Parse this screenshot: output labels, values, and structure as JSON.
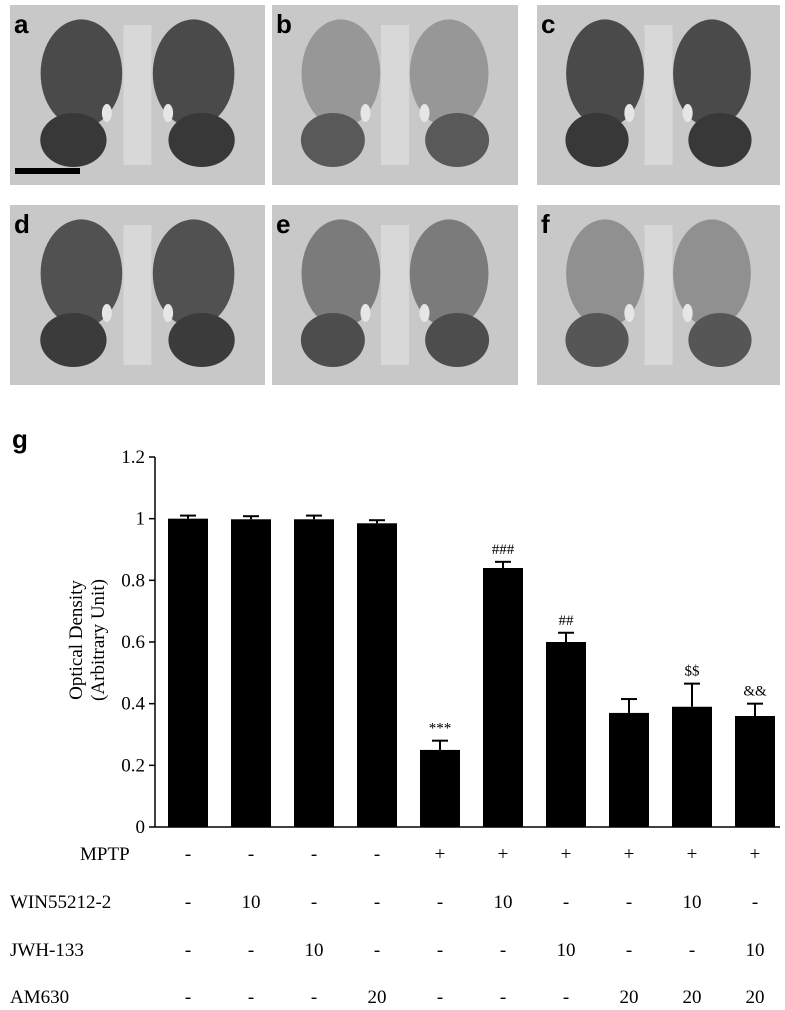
{
  "panels": [
    "a",
    "b",
    "c",
    "d",
    "e",
    "f"
  ],
  "chart_data": {
    "type": "bar",
    "label": "g",
    "ylabel": [
      "Optical Density",
      "(Arbitrary Unit)"
    ],
    "categories": [
      null,
      null,
      null,
      null,
      null,
      null,
      null,
      null,
      null,
      null
    ],
    "values": [
      1.0,
      0.998,
      0.998,
      0.985,
      0.25,
      0.84,
      0.6,
      0.37,
      0.39,
      0.36
    ],
    "errors": [
      0.01,
      0.01,
      0.012,
      0.01,
      0.03,
      0.02,
      0.03,
      0.045,
      0.075,
      0.04
    ],
    "annotations": [
      null,
      null,
      null,
      null,
      "***",
      "###",
      "##",
      null,
      "$$",
      "&&"
    ],
    "color": "#000000",
    "ylim": [
      0,
      1.2
    ],
    "yticks": [
      0,
      0.2,
      0.4,
      0.6,
      0.8,
      1,
      1.2
    ],
    "treatments": [
      {
        "name": "MPTP",
        "values": [
          "-",
          "-",
          "-",
          "-",
          "+",
          "+",
          "+",
          "+",
          "+",
          "+"
        ]
      },
      {
        "name": "WIN55212-2",
        "values": [
          "-",
          "10",
          "-",
          "-",
          "-",
          "10",
          "-",
          "-",
          "10",
          "-"
        ]
      },
      {
        "name": "JWH-133",
        "values": [
          "-",
          "-",
          "10",
          "-",
          "-",
          "-",
          "10",
          "-",
          "-",
          "10"
        ]
      },
      {
        "name": "AM630",
        "values": [
          "-",
          "-",
          "-",
          "20",
          "-",
          "-",
          "-",
          "20",
          "20",
          "20"
        ]
      }
    ]
  }
}
